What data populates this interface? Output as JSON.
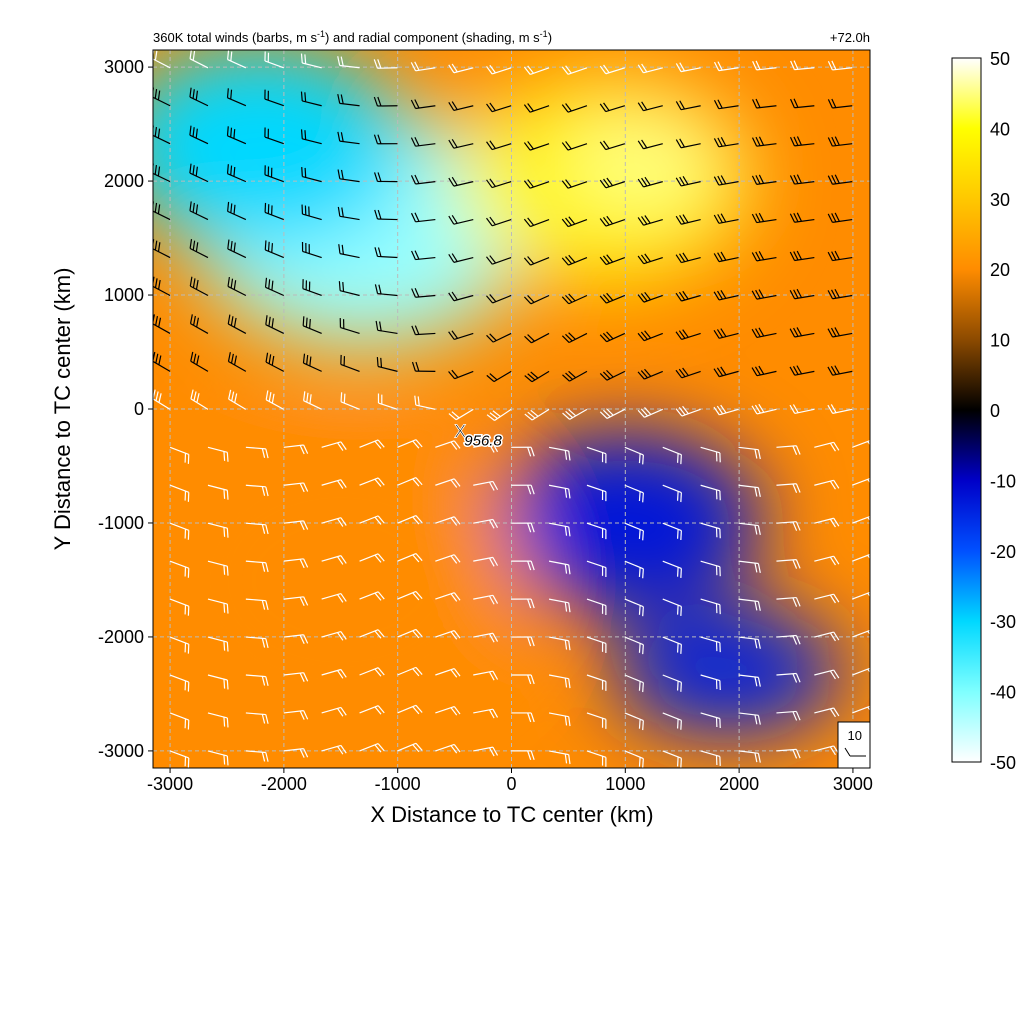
{
  "chart_data": {
    "type": "heatmap",
    "title_prefix": "360K total winds (barbs, m s",
    "title_mid": ") and radial component (shading, m s",
    "title_suffix": ")",
    "title_exponent": "-1",
    "lead_time": "+72.0h",
    "xlabel": "X Distance to TC center (km)",
    "ylabel": "Y Distance to TC center (km)",
    "xlim": [
      -3150,
      3150
    ],
    "ylim": [
      -3150,
      3150
    ],
    "xticks": [
      -3000,
      -2000,
      -1000,
      0,
      1000,
      2000,
      3000
    ],
    "yticks": [
      -3000,
      -2000,
      -1000,
      0,
      1000,
      2000,
      3000
    ],
    "grid": true,
    "colorbar": {
      "min": -50,
      "max": 50,
      "ticks": [
        50,
        40,
        30,
        20,
        10,
        0,
        -10,
        -20,
        -30,
        -40,
        -50
      ],
      "stops": [
        {
          "v": -50,
          "c": "#ffffff"
        },
        {
          "v": -40,
          "c": "#7fffff"
        },
        {
          "v": -30,
          "c": "#00d8ff"
        },
        {
          "v": -20,
          "c": "#0050ff"
        },
        {
          "v": -10,
          "c": "#0000c8"
        },
        {
          "v": 0,
          "c": "#000000"
        },
        {
          "v": 10,
          "c": "#8c4a00"
        },
        {
          "v": 20,
          "c": "#ff8c00"
        },
        {
          "v": 30,
          "c": "#ffc800"
        },
        {
          "v": 40,
          "c": "#ffff00"
        },
        {
          "v": 50,
          "c": "#ffffff"
        }
      ]
    },
    "field_regions": [
      {
        "x": -1300,
        "y": 1600,
        "rx": 1500,
        "ry": 1050,
        "value": -42
      },
      {
        "x": -2200,
        "y": 2300,
        "rx": 1300,
        "ry": 900,
        "value": -30
      },
      {
        "x": 800,
        "y": 2000,
        "rx": 1300,
        "ry": 900,
        "value": 38
      },
      {
        "x": 1200,
        "y": 2200,
        "rx": 700,
        "ry": 500,
        "value": 45
      },
      {
        "x": 1000,
        "y": -1000,
        "rx": 1200,
        "ry": 800,
        "value": -13
      },
      {
        "x": 1900,
        "y": -2300,
        "rx": 1000,
        "ry": 550,
        "value": -14
      },
      {
        "x": -1500,
        "y": -1500,
        "rx": 1600,
        "ry": 1300,
        "value": 20
      }
    ],
    "center": {
      "x": -450,
      "y": -180,
      "marker": "X",
      "label": "956.8"
    },
    "reference_barb": {
      "label": "10"
    },
    "barb_spacing_km": 333
  }
}
